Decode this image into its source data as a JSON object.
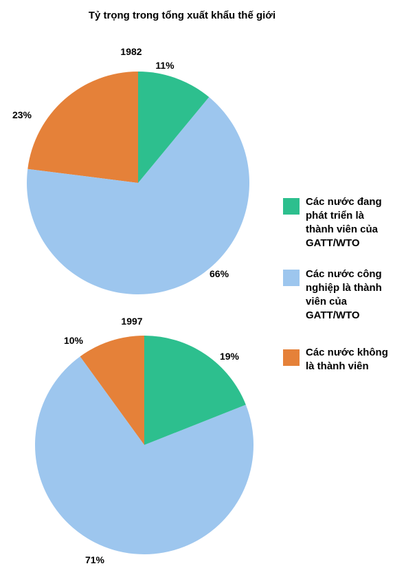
{
  "chart_data": {
    "type": "pie",
    "title": "Tỷ trọng trong tổng xuất khẩu thế giới",
    "categories": [
      "Các nước đang phát triển là thành viên của GATT/WTO",
      "Các nước công nghiệp là thành viên của GATT/WTO",
      "Các nước không là thành viên"
    ],
    "colors": [
      "#2dbf8e",
      "#9dc6ee",
      "#e58139"
    ],
    "series": [
      {
        "name": "1982",
        "values": [
          11,
          66,
          23
        ],
        "labels": [
          "11%",
          "66%",
          "23%"
        ]
      },
      {
        "name": "1997",
        "values": [
          19,
          71,
          10
        ],
        "labels": [
          "19%",
          "71%",
          "10%"
        ]
      }
    ],
    "legend": {
      "placement": "right",
      "lines": [
        [
          "Các nước đang",
          "phát triển là",
          "thành viên của",
          "GATT/WTO"
        ],
        [
          "Các nước công",
          "nghiệp là thành",
          "viên của",
          "GATT/WTO"
        ],
        [
          "Các nước không",
          "là thành viên"
        ]
      ]
    }
  }
}
